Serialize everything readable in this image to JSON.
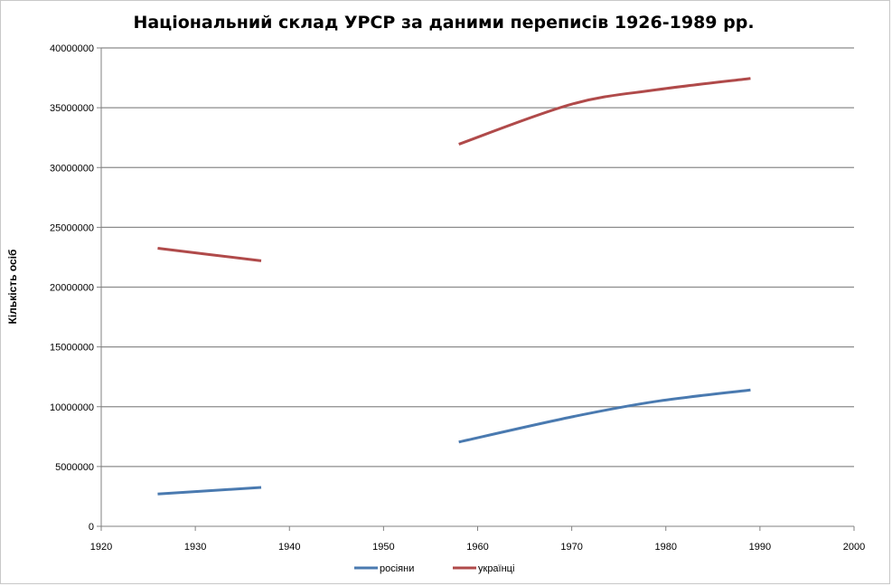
{
  "chart_data": {
    "type": "line",
    "title": "Національний склад УРСР за даними переписів 1926-1989  рр.",
    "xlabel": "",
    "ylabel": "Кількість осіб",
    "xlim": [
      1920,
      2000
    ],
    "ylim": [
      0,
      40000000
    ],
    "x_ticks": [
      1920,
      1930,
      1940,
      1950,
      1960,
      1970,
      1980,
      1990,
      2000
    ],
    "y_ticks": [
      0,
      5000000,
      10000000,
      15000000,
      20000000,
      25000000,
      30000000,
      35000000,
      40000000
    ],
    "grid": "horizontal",
    "legend_position": "bottom",
    "series": [
      {
        "name": "росіяни",
        "color": "#4a7ab0",
        "segments": [
          {
            "x": [
              1926,
              1937
            ],
            "y": [
              2700000,
              3250000
            ]
          },
          {
            "x": [
              1958,
              1970,
              1979,
              1989
            ],
            "y": [
              7050000,
              9150000,
              10450000,
              11400000
            ]
          }
        ]
      },
      {
        "name": "українці",
        "color": "#b04a4a",
        "segments": [
          {
            "x": [
              1926,
              1937
            ],
            "y": [
              23250000,
              22200000
            ]
          },
          {
            "x": [
              1958,
              1970,
              1979,
              1989
            ],
            "y": [
              31950000,
              35300000,
              36500000,
              37450000
            ]
          }
        ]
      }
    ]
  }
}
